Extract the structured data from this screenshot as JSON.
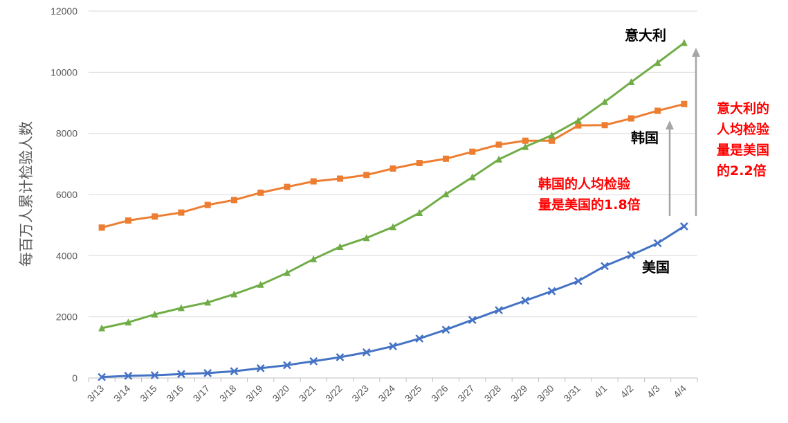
{
  "chart_data": {
    "type": "line",
    "title": "",
    "xlabel": "",
    "ylabel": "每百万人累计检验人数",
    "ylim": [
      0,
      12000
    ],
    "yticks": [
      0,
      2000,
      4000,
      6000,
      8000,
      10000,
      12000
    ],
    "grid": true,
    "categories": [
      "3/13",
      "3/14",
      "3/15",
      "3/16",
      "3/17",
      "3/18",
      "3/19",
      "3/20",
      "3/21",
      "3/22",
      "3/23",
      "3/24",
      "3/25",
      "3/26",
      "3/27",
      "3/28",
      "3/29",
      "3/30",
      "3/31",
      "4/1",
      "4/2",
      "4/3",
      "4/4"
    ],
    "series": [
      {
        "name": "韩国",
        "color": "#ed7d31",
        "marker": "square",
        "values": [
          4920,
          5150,
          5280,
          5410,
          5660,
          5820,
          6060,
          6250,
          6430,
          6520,
          6640,
          6850,
          7030,
          7170,
          7400,
          7630,
          7760,
          7760,
          8260,
          8270,
          8490,
          8740,
          8960
        ]
      },
      {
        "name": "意大利",
        "color": "#70ad47",
        "marker": "triangle",
        "values": [
          1630,
          1820,
          2080,
          2290,
          2470,
          2740,
          3050,
          3440,
          3890,
          4290,
          4580,
          4940,
          5400,
          6010,
          6570,
          7150,
          7560,
          7940,
          8420,
          9030,
          9680,
          10310,
          10960
        ]
      },
      {
        "name": "美国",
        "color": "#4472c4",
        "marker": "x",
        "values": [
          30,
          70,
          90,
          130,
          160,
          220,
          320,
          420,
          550,
          680,
          840,
          1040,
          1290,
          1580,
          1900,
          2220,
          2530,
          2840,
          3170,
          3660,
          4020,
          4410,
          4960
        ]
      }
    ],
    "annotations": [
      {
        "lines": [
          "韩国的人均检验",
          "量是美国的1.8倍"
        ],
        "color": "#ff0000"
      },
      {
        "lines": [
          "意大利的",
          "人均检验",
          "量是美国",
          "的2.2倍"
        ],
        "color": "#ff0000"
      }
    ],
    "arrow_color": "#a6a6a6",
    "grid_color": "#d9d9d9"
  }
}
